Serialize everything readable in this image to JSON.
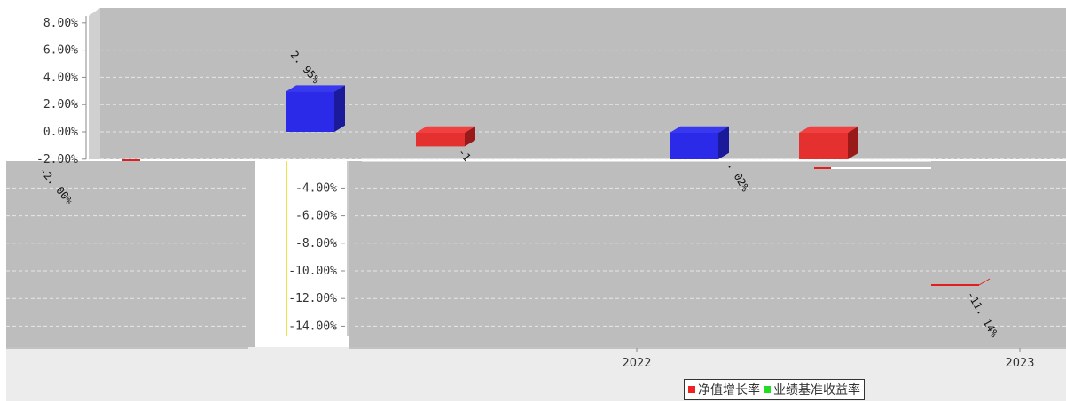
{
  "chart_data": {
    "type": "bar",
    "y_ticks": [
      "8.00%",
      "6.00%",
      "4.00%",
      "2.00%",
      "0.00%",
      "-2.00%",
      "-4.00%",
      "-6.00%",
      "-8.00%",
      "-10.00%",
      "-12.00%",
      "-14.00%"
    ],
    "ylim": [
      -14,
      8
    ],
    "x_ticks": [
      "2022",
      "2023"
    ],
    "bars": [
      {
        "series": "净值增长率",
        "value": -0.1,
        "color": "#e02020"
      },
      {
        "series": "blue",
        "value": 2.95,
        "label": "2. 95%",
        "color": "#2020e0"
      },
      {
        "series": "净值增长率",
        "value": -1.0,
        "label": "-1",
        "color": "#e02020"
      },
      {
        "series": "blue",
        "value": -2.0,
        "label": "-2. 00%",
        "color": "#2020e0"
      },
      {
        "series": "净值增长率",
        "value": -2.0,
        "color": "#e02020"
      },
      {
        "series": "净值增长率",
        "value": -11.14,
        "label": "-11. 14%",
        "color": "#e02020"
      }
    ],
    "visible_labels": [
      "2. 95%",
      "-2. 00%",
      "-1",
      ". 02%",
      "-11. 14%"
    ],
    "legend": [
      {
        "name": "净值增长率",
        "color": "#ee2222"
      },
      {
        "name": "业绩基准收益率",
        "color": "#22dd22"
      }
    ],
    "grid": true,
    "legend_position": "bottom-right"
  }
}
